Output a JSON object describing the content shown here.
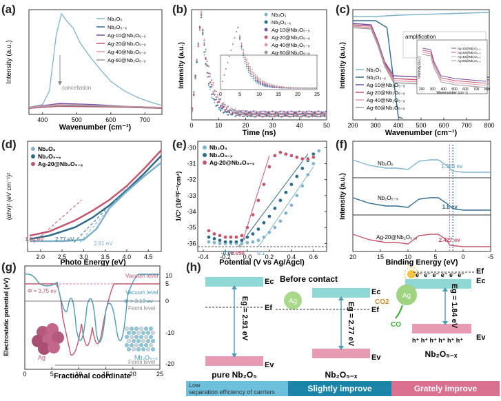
{
  "panels": {
    "a": {
      "letter": "(a)",
      "chart_data": {
        "type": "line",
        "title": "",
        "xlabel": "Wavenumber (cm⁻¹)",
        "ylabel": "Intensity (a.u.)",
        "xticks": [
          "400",
          "500",
          "600",
          "700"
        ],
        "xlim": [
          360,
          750
        ],
        "legend": [
          "Nb₂O₅",
          "Nb₂O₅₋ₓ",
          "Ag-10@Nb₂O₅₋ₓ",
          "Ag-20@Nb₂O₅₋ₓ",
          "Ag-40@Nb₂O₅₋ₓ",
          "Ag-60@Nb₂O₅₋ₓ"
        ],
        "annotation": "cancellation",
        "series": [
          {
            "name": "Nb₂O₅",
            "color": "#7fb3cc",
            "x": [
              360,
              400,
              420,
              440,
              455,
              470,
              490,
              510,
              540,
              570,
              600,
              640,
              680,
              720,
              750
            ],
            "y": [
              0.03,
              0.06,
              0.2,
              0.78,
              1.0,
              0.93,
              0.85,
              0.7,
              0.55,
              0.42,
              0.3,
              0.2,
              0.13,
              0.08,
              0.05
            ]
          },
          {
            "name": "Nb₂O₅₋ₓ",
            "color": "#2e6a8a",
            "x": [
              360,
              450,
              550,
              650,
              750
            ],
            "y": [
              0.02,
              0.05,
              0.04,
              0.03,
              0.02
            ]
          },
          {
            "name": "Ag-10@Nb₂O₅₋ₓ",
            "color": "#6c4fa0",
            "x": [
              360,
              450,
              550,
              650,
              750
            ],
            "y": [
              0.03,
              0.07,
              0.06,
              0.04,
              0.03
            ]
          },
          {
            "name": "Ag-20@Nb₂O₅₋ₓ",
            "color": "#c2566f",
            "x": [
              360,
              450,
              550,
              650,
              750
            ],
            "y": [
              0.02,
              0.04,
              0.035,
              0.03,
              0.02
            ]
          },
          {
            "name": "Ag-40@Nb₂O₅₋ₓ",
            "color": "#e39aa9",
            "x": [
              360,
              450,
              550,
              650,
              750
            ],
            "y": [
              0.03,
              0.06,
              0.05,
              0.04,
              0.03
            ]
          },
          {
            "name": "Ag-60@Nb₂O₅₋ₓ",
            "color": "#999999",
            "x": [
              360,
              450,
              550,
              650,
              750
            ],
            "y": [
              0.025,
              0.05,
              0.045,
              0.035,
              0.025
            ]
          }
        ]
      }
    },
    "b": {
      "letter": "(b)",
      "chart_data": {
        "type": "scatter",
        "xlabel": "Time (ns)",
        "ylabel": "Intensity (a.u.)",
        "xticks": [
          "0",
          "10",
          "20",
          "30",
          "40",
          "50"
        ],
        "xlim": [
          0,
          50
        ],
        "legend": [
          "Nb₂O₅",
          "Nb₂O₅₋ₓ",
          "Ag-10@Nb₂O₅₋ₓ",
          "Ag-20@Nb₂O₅₋ₓ",
          "Ag-40@Nb₂O₅₋ₓ",
          "Ag-60@Nb₂O₅₋ₓ"
        ],
        "inset_ticks": [
          "0",
          "5",
          "10",
          "15",
          "20",
          "25"
        ]
      }
    },
    "c": {
      "letter": "(c)",
      "chart_data": {
        "type": "line",
        "xlabel": "Wavenumber (cm⁻¹)",
        "ylabel": "Intensity (a.u.)",
        "xticks": [
          "200",
          "300",
          "400",
          "500",
          "600",
          "700",
          "800"
        ],
        "xlim": [
          200,
          800
        ],
        "legend": [
          "Nb₂O₅",
          "Nb₂O₅₋ₓ",
          "Ag-10@Nb₂O₅₋ₓ",
          "Ag-20@Nb₂O₅₋ₓ",
          "Ag-40@Nb₂O₅₋ₓ",
          "Ag-60@Nb₂O₅₋ₓ"
        ],
        "annotation": "amplification",
        "inset_xlabel": "Wavenumber (cm⁻¹)",
        "inset_ylabel": "Intensity (a.u.)",
        "inset_ticks": [
          "200",
          "300",
          "400",
          "500",
          "600",
          "700",
          "800"
        ],
        "inset_legend": [
          "Ag-10@Nb₂O₅₋ₓ",
          "Ag-20@Nb₂O₅₋ₓ",
          "Ag-40@Nb₂O₅₋ₓ",
          "Ag-60@Nb₂O₅₋ₓ"
        ]
      }
    },
    "d": {
      "letter": "(d)",
      "chart_data": {
        "type": "line",
        "xlabel": "Photo Energy (eV)",
        "ylabel": "(αhν)² (eV cm⁻¹)²",
        "xticks": [
          "2.0",
          "2.5",
          "3.0",
          "3.5",
          "4.0",
          "4.5"
        ],
        "xlim": [
          1.7,
          4.8
        ],
        "legend": [
          "Nb₂O₅",
          "Nb₂O₅₋ₓ",
          "Ag-20@Nb₂O₅₋ₓ"
        ],
        "gaps": [
          {
            "label": "1.84 eV",
            "value": 1.84,
            "color": "#c2566f"
          },
          {
            "label": "2.77 eV",
            "value": 2.77,
            "color": "#2e6a8a"
          },
          {
            "label": "2.91 eV",
            "value": 2.91,
            "color": "#7fb3cc"
          }
        ]
      }
    },
    "e": {
      "letter": "(e)",
      "chart_data": {
        "type": "scatter",
        "xlabel": "Potential (V vs Ag/Agcl)",
        "ylabel": "1/C² (10¹⁰F⁻²cm⁴)",
        "xticks": [
          "-0.4",
          "-0.2",
          "0.0",
          "0.2",
          "0.4",
          "0.6"
        ],
        "xlim": [
          -0.45,
          0.72
        ],
        "yticks": [
          "-30",
          "-31",
          "-32",
          "-33",
          "-34",
          "-35",
          "-36"
        ],
        "ylim": [
          -36.5,
          -29.6
        ],
        "legend": [
          "Nb₂O₅",
          "Nb₂O₅₋ₓ",
          "Ag-20@Nb₂O₅₋ₓ"
        ],
        "intercepts": [
          {
            "label": "-0.08",
            "value": -0.08,
            "color": "#2e6a8a"
          },
          {
            "label": "-0.058",
            "value": -0.058,
            "color": "#c2566f"
          },
          {
            "label": "0.1",
            "value": 0.1,
            "color": "#7fb3cc"
          }
        ],
        "series": [
          {
            "name": "Nb₂O₅",
            "color": "#7fb3cc",
            "x": [
              -0.35,
              -0.3,
              -0.25,
              -0.2,
              -0.15,
              -0.1,
              -0.05,
              0.0,
              0.05,
              0.1,
              0.15,
              0.2,
              0.25,
              0.3,
              0.35,
              0.4,
              0.45,
              0.5,
              0.55,
              0.6,
              0.65
            ],
            "y": [
              -35.9,
              -35.95,
              -36.0,
              -36.0,
              -36.0,
              -36.0,
              -36.0,
              -35.95,
              -35.9,
              -35.8,
              -35.6,
              -35.3,
              -35.0,
              -34.6,
              -34.1,
              -33.6,
              -33.0,
              -32.4,
              -31.7,
              -31.0,
              -30.2
            ]
          },
          {
            "name": "Nb₂O₅₋ₓ",
            "color": "#2e6a8a",
            "x": [
              -0.35,
              -0.3,
              -0.25,
              -0.2,
              -0.15,
              -0.1,
              -0.05,
              0.0,
              0.05,
              0.1,
              0.15,
              0.2,
              0.25,
              0.3,
              0.35,
              0.4,
              0.45,
              0.5,
              0.55,
              0.6
            ],
            "y": [
              -35.6,
              -35.7,
              -35.8,
              -35.9,
              -35.9,
              -35.9,
              -35.8,
              -35.6,
              -35.4,
              -35.1,
              -34.7,
              -34.3,
              -33.8,
              -33.3,
              -32.8,
              -32.3,
              -31.8,
              -31.3,
              -30.8,
              -30.4
            ]
          },
          {
            "name": "Ag-20@Nb₂O₅₋ₓ",
            "color": "#c2566f",
            "x": [
              -0.35,
              -0.3,
              -0.25,
              -0.2,
              -0.15,
              -0.1,
              -0.05,
              0.0,
              0.05,
              0.1,
              0.15,
              0.2,
              0.25,
              0.3,
              0.35,
              0.4,
              0.45,
              0.5,
              0.55,
              0.6
            ],
            "y": [
              -35.2,
              -35.4,
              -35.5,
              -35.6,
              -35.6,
              -35.6,
              -35.5,
              -35.0,
              -34.2,
              -33.3,
              -32.3,
              -31.2,
              -30.5,
              -30.3,
              -30.4,
              -30.5,
              -30.6,
              -30.7,
              -30.7,
              -30.6
            ]
          }
        ]
      }
    },
    "f": {
      "letter": "(f)",
      "chart_data": {
        "type": "line",
        "xlabel": "Binding Energy (eV)",
        "ylabel": "Intensity (a.u.)",
        "xticks": [
          "20",
          "15",
          "10",
          "5",
          "0",
          "-5"
        ],
        "xlim": [
          20,
          -5
        ],
        "traces": [
          {
            "name": "Nb₂O₅",
            "vbm": "1.965 ev",
            "color": "#7fb3cc"
          },
          {
            "name": "Nb₂O₅₋ₓ",
            "vbm": "1.8 ev",
            "color": "#2e6a8a"
          },
          {
            "name": "Ag-20@Nb₂O₅₋ₓ",
            "vbm": "2.427 ev",
            "color": "#c2566f"
          }
        ]
      }
    },
    "g": {
      "letter": "(g)",
      "chart_data": {
        "type": "line",
        "xlabel": "Fractional coordinate",
        "ylabel": "Electrostatic potential (eV)",
        "xticks": [
          "0",
          "5",
          "10",
          "15",
          "20",
          "25"
        ],
        "xlim": [
          0,
          25
        ],
        "yticks_right": [
          "10",
          "5",
          "0",
          "-10",
          "-20"
        ],
        "labels": {
          "vacuum1": "Vacuum level",
          "vacuum2": "Vacuum level",
          "fermi1": "Fermi level",
          "fermi2": "Fermi level",
          "phi_ag": "Φ = 3.75 ev",
          "phi_nb": "Φ = 3.13 ev",
          "ag": "Ag",
          "nb": "Nb₂O₅₋ₓ"
        }
      }
    },
    "h": {
      "letter": "(h)",
      "titles": {
        "before": "Before contact",
        "after": "After contact"
      },
      "labels": {
        "ec": "Ec",
        "ev": "Ev",
        "ef": "Ef",
        "eg1": "Eg = 2.91 eV",
        "eg2": "Eg = 2.77 eV",
        "eg3": "Eg = 1.84 eV",
        "ag": "Ag",
        "ag2": "Ag",
        "co2": "CO2",
        "co": "CO",
        "electrons": "e⁻ e⁻ e⁻ e⁻ e⁻ e⁻",
        "holes": "h⁺ h⁺ h⁺ h⁺ h⁺ h⁺"
      },
      "names": [
        "pure Nb₂O₅",
        "Nb₂O₅₋ₓ",
        "Nb₂O₅₋ₓ"
      ],
      "banner": [
        "Low separation efficiency of carrters",
        "Slightly improve",
        "Grately improve"
      ],
      "banner_low": "Low",
      "banner_rest": "separation efficiency of carrters"
    }
  }
}
